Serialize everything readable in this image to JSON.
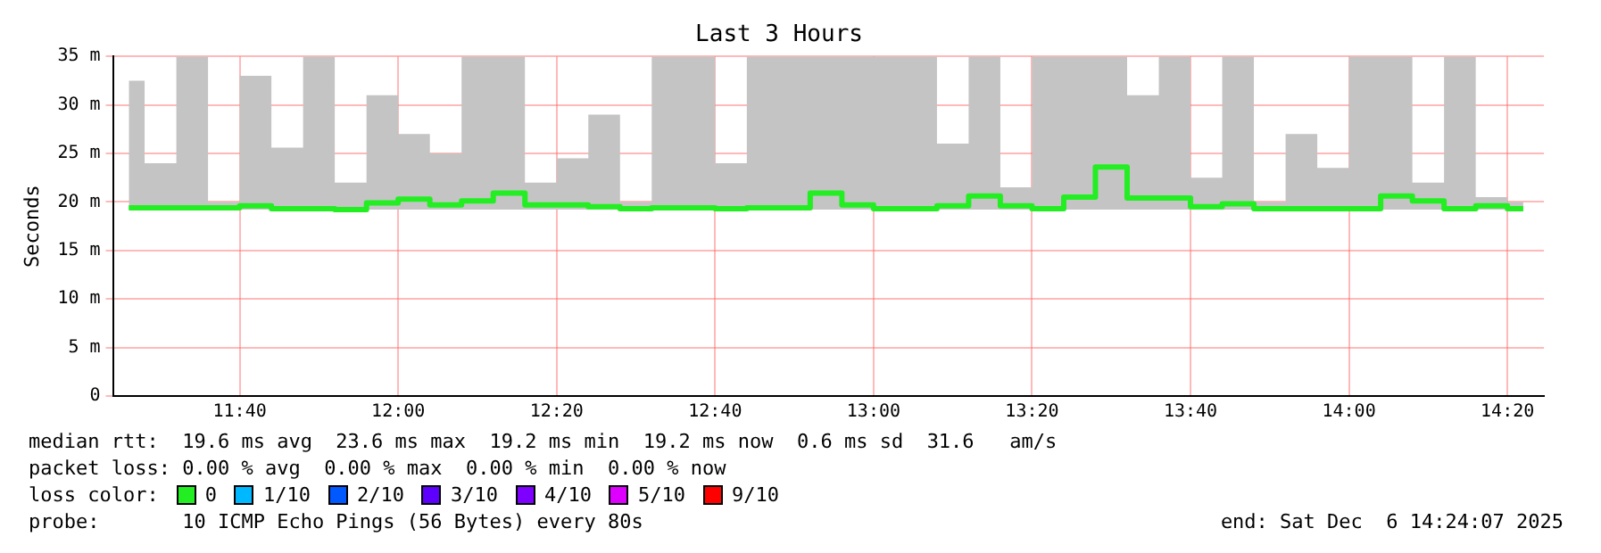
{
  "chart_data": {
    "type": "step",
    "title": "Last 3 Hours",
    "ylabel": "Seconds",
    "legend_title": "loss color:",
    "legend": "bottom",
    "grid": true,
    "x": [
      11.4333,
      11.5,
      11.5667,
      11.6333,
      11.7,
      11.7667,
      11.8333,
      11.9,
      11.9667,
      12.0333,
      12.1,
      12.1667,
      12.2333,
      12.3,
      12.3667,
      12.4333,
      12.5,
      12.5667,
      12.6333,
      12.7,
      12.7667,
      12.8333,
      12.9,
      12.9667,
      13.0333,
      13.1,
      13.1667,
      13.2333,
      13.3,
      13.3667,
      13.4333,
      13.5,
      13.5667,
      13.6333,
      13.7,
      13.7667,
      13.8333,
      13.9,
      13.9667,
      14.0333,
      14.1,
      14.1667,
      14.2333,
      14.3,
      14.3667
    ],
    "series": [
      {
        "name": "0",
        "color": "#22ee22",
        "values": [
          19.4,
          19.4,
          19.4,
          19.4,
          19.6,
          19.3,
          19.3,
          19.2,
          19.9,
          20.3,
          19.7,
          20.1,
          20.9,
          19.7,
          19.7,
          19.5,
          19.3,
          19.4,
          19.4,
          19.3,
          19.4,
          19.4,
          20.9,
          19.7,
          19.3,
          19.3,
          19.6,
          20.6,
          19.6,
          19.3,
          20.5,
          23.6,
          20.4,
          20.4,
          19.5,
          19.8,
          19.3,
          19.3,
          19.3,
          19.3,
          20.6,
          20.1,
          19.3,
          19.6,
          19.3
        ],
        "lower": [
          19.2,
          19.2,
          19.2,
          19.2,
          19.2,
          19.2,
          19.2,
          19.2,
          19.2,
          19.2,
          19.2,
          19.2,
          19.2,
          19.2,
          19.2,
          19.2,
          19.2,
          19.2,
          19.2,
          19.2,
          19.2,
          19.2,
          19.2,
          19.2,
          19.2,
          19.2,
          19.2,
          19.2,
          19.2,
          19.2,
          19.2,
          19.2,
          19.2,
          19.2,
          19.2,
          19.2,
          19.2,
          19.2,
          19.2,
          19.2,
          19.2,
          19.2,
          19.2,
          19.2,
          19.2
        ],
        "upper": [
          32.5,
          24,
          35,
          20,
          33,
          25.6,
          35,
          22,
          31,
          27,
          25,
          35,
          35,
          22,
          24.5,
          29,
          20,
          35,
          35,
          24,
          35,
          35,
          35,
          35,
          35,
          35,
          26,
          35,
          21.5,
          35,
          35,
          35,
          31,
          35,
          22.5,
          35,
          20,
          27,
          23.5,
          35,
          35,
          22,
          35,
          20.5,
          20
        ]
      },
      {
        "name": "1/10",
        "color": "#00b8ff",
        "values": [
          null,
          null,
          null,
          null,
          null,
          null,
          null,
          null,
          null,
          null,
          null,
          null,
          null,
          null,
          null,
          null,
          null,
          null,
          null,
          null,
          null,
          null,
          null,
          null,
          null,
          null,
          null,
          null,
          null,
          null,
          null,
          null,
          null,
          null,
          null,
          null,
          null,
          null,
          null,
          null,
          null,
          null,
          null,
          null,
          null
        ]
      },
      {
        "name": "2/10",
        "color": "#0059ff",
        "values": [
          null,
          null,
          null,
          null,
          null,
          null,
          null,
          null,
          null,
          null,
          null,
          null,
          null,
          null,
          null,
          null,
          null,
          null,
          null,
          null,
          null,
          null,
          null,
          null,
          null,
          null,
          null,
          null,
          null,
          null,
          null,
          null,
          null,
          null,
          null,
          null,
          null,
          null,
          null,
          null,
          null,
          null,
          null,
          null,
          null
        ]
      },
      {
        "name": "3/10",
        "color": "#5e00ff",
        "values": [
          null,
          null,
          null,
          null,
          null,
          null,
          null,
          null,
          null,
          null,
          null,
          null,
          null,
          null,
          null,
          null,
          null,
          null,
          null,
          null,
          null,
          null,
          null,
          null,
          null,
          null,
          null,
          null,
          null,
          null,
          null,
          null,
          null,
          null,
          null,
          null,
          null,
          null,
          null,
          null,
          null,
          null,
          null,
          null,
          null
        ]
      },
      {
        "name": "4/10",
        "color": "#7e00ff",
        "values": [
          null,
          null,
          null,
          null,
          null,
          null,
          null,
          null,
          null,
          null,
          null,
          null,
          null,
          null,
          null,
          null,
          null,
          null,
          null,
          null,
          null,
          null,
          null,
          null,
          null,
          null,
          null,
          null,
          null,
          null,
          null,
          null,
          null,
          null,
          null,
          null,
          null,
          null,
          null,
          null,
          null,
          null,
          null,
          null,
          null
        ]
      },
      {
        "name": "5/10",
        "color": "#dd00ff",
        "values": [
          null,
          null,
          null,
          null,
          null,
          null,
          null,
          null,
          null,
          null,
          null,
          null,
          null,
          null,
          null,
          null,
          null,
          null,
          null,
          null,
          null,
          null,
          null,
          null,
          null,
          null,
          null,
          null,
          null,
          null,
          null,
          null,
          null,
          null,
          null,
          null,
          null,
          null,
          null,
          null,
          null,
          null,
          null,
          null,
          null
        ]
      },
      {
        "name": "9/10",
        "color": "#ff0000",
        "values": [
          null,
          null,
          null,
          null,
          null,
          null,
          null,
          null,
          null,
          null,
          null,
          null,
          null,
          null,
          null,
          null,
          null,
          null,
          null,
          null,
          null,
          null,
          null,
          null,
          null,
          null,
          null,
          null,
          null,
          null,
          null,
          null,
          null,
          null,
          null,
          null,
          null,
          null,
          null,
          null,
          null,
          null,
          null,
          null,
          null
        ]
      }
    ],
    "xlim": [
      11.4,
      14.41
    ],
    "xticks": [
      {
        "value": 11.6667,
        "label": "11:40"
      },
      {
        "value": 12,
        "label": "12:00"
      },
      {
        "value": 12.3333,
        "label": "12:20"
      },
      {
        "value": 12.6667,
        "label": "12:40"
      },
      {
        "value": 13,
        "label": "13:00"
      },
      {
        "value": 13.3333,
        "label": "13:20"
      },
      {
        "value": 13.6667,
        "label": "13:40"
      },
      {
        "value": 14,
        "label": "14:00"
      },
      {
        "value": 14.3333,
        "label": "14:20"
      }
    ],
    "ylim": [
      0,
      35
    ],
    "yticks": [
      {
        "value": 0,
        "label": "0"
      },
      {
        "value": 5,
        "label": "5 m"
      },
      {
        "value": 10,
        "label": "10 m"
      },
      {
        "value": 15,
        "label": "15 m"
      },
      {
        "value": 20,
        "label": "20 m"
      },
      {
        "value": 25,
        "label": "25 m"
      },
      {
        "value": 30,
        "label": "30 m"
      },
      {
        "value": 35,
        "label": "35 m"
      }
    ],
    "annotations": [
      "median rtt:  19.6 ms avg  23.6 ms max  19.2 ms min  19.2 ms now  0.6 ms sd  31.6   am/s",
      "packet loss: 0.00 % avg  0.00 % max  0.00 % min  0.00 % now",
      "probe:       10 ICMP Echo Pings (56 Bytes) every 80s",
      "end: Sat Dec  6 14:24:07 2025"
    ]
  }
}
